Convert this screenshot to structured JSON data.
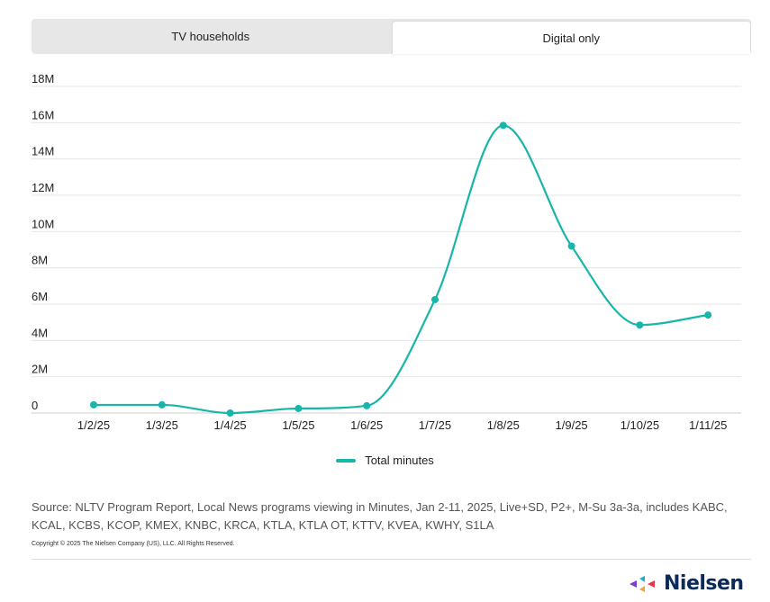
{
  "tabs": [
    {
      "label": "TV households",
      "active": false
    },
    {
      "label": "Digital only",
      "active": true
    }
  ],
  "chart_data": {
    "type": "line",
    "x": [
      "1/2/25",
      "1/3/25",
      "1/4/25",
      "1/5/25",
      "1/6/25",
      "1/7/25",
      "1/8/25",
      "1/9/25",
      "1/10/25",
      "1/11/25"
    ],
    "series": [
      {
        "name": "Total minutes",
        "color": "#17b5aa",
        "values": [
          450000,
          450000,
          0,
          250000,
          400000,
          6250000,
          15850000,
          9200000,
          4850000,
          5400000
        ]
      }
    ],
    "y_ticks": [
      {
        "value": 0,
        "label": "0"
      },
      {
        "value": 2000000,
        "label": "2M"
      },
      {
        "value": 4000000,
        "label": "4M"
      },
      {
        "value": 6000000,
        "label": "6M"
      },
      {
        "value": 8000000,
        "label": "8M"
      },
      {
        "value": 10000000,
        "label": "10M"
      },
      {
        "value": 12000000,
        "label": "12M"
      },
      {
        "value": 14000000,
        "label": "14M"
      },
      {
        "value": 16000000,
        "label": "16M"
      },
      {
        "value": 18000000,
        "label": "18M"
      }
    ],
    "ylim": [
      0,
      18000000
    ],
    "grid": true,
    "legend_position": "bottom-center",
    "title": "",
    "xlabel": "",
    "ylabel": ""
  },
  "source_text": "Source: NLTV Program Report, Local News programs viewing in Minutes, Jan 2-11, 2025, Live+SD, P2+, M-Su 3a-3a, includes KABC, KCAL, KCBS, KCOP, KMEX, KNBC, KRCA, KTLA, KTLA OT, KTTV, KVEA, KWHY, S1LA",
  "copyright_text": "Copyright © 2025 The Nielsen Company (US), LLC. All Rights Reserved.",
  "logo_text": "Nielsen"
}
